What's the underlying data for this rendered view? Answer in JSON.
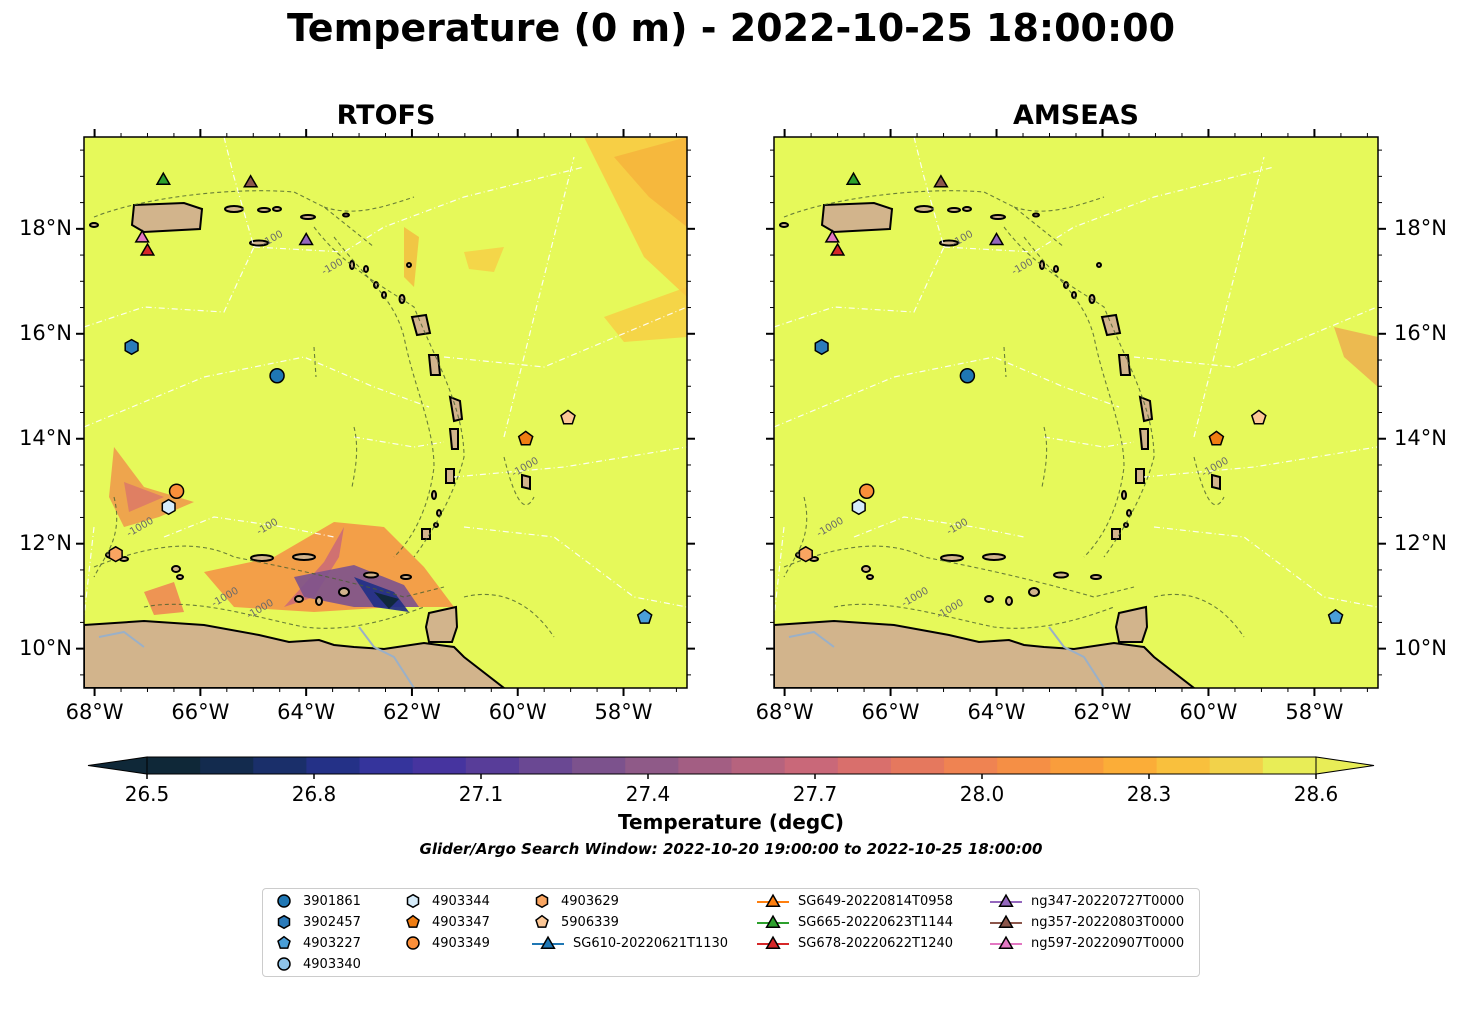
{
  "title": "Temperature (0 m) - 2022-10-25 18:00:00",
  "panels": [
    {
      "title": "RTOFS"
    },
    {
      "title": "AMSEAS"
    }
  ],
  "lon_ticks": [
    "68°W",
    "66°W",
    "64°W",
    "62°W",
    "60°W",
    "58°W"
  ],
  "lat_ticks": [
    "18°N",
    "16°N",
    "14°N",
    "12°N",
    "10°N"
  ],
  "contour_labels": [
    "-100",
    "-1000"
  ],
  "colorbar": {
    "label": "Temperature (degC)",
    "ticks": [
      "26.5",
      "26.8",
      "27.1",
      "27.4",
      "27.7",
      "28.0",
      "28.3",
      "28.6"
    ],
    "colors": [
      "#0f2838",
      "#132b4e",
      "#1a2f6a",
      "#243187",
      "#35349c",
      "#46349f",
      "#583d99",
      "#6a4893",
      "#7c528d",
      "#8f5a88",
      "#a35e83",
      "#b6637e",
      "#c96879",
      "#d96f6c",
      "#e5785e",
      "#ef8352",
      "#f58f45",
      "#f99d3c",
      "#fbad38",
      "#f9c03d",
      "#f2d24a",
      "#e8ed57"
    ]
  },
  "search_window": "Glider/Argo Search Window: 2022-10-20 19:00:00 to 2022-10-25 18:00:00",
  "legend": [
    {
      "label": "3901861",
      "marker": "circle",
      "color": "#1f77b4"
    },
    {
      "label": "3902457",
      "marker": "hexagon",
      "color": "#2b7bba"
    },
    {
      "label": "4903227",
      "marker": "pentagon",
      "color": "#4a9fd8"
    },
    {
      "label": "4903340",
      "marker": "circle",
      "color": "#8ec3e8"
    },
    {
      "label": "4903344",
      "marker": "hexagon",
      "color": "#d6ecfa"
    },
    {
      "label": "4903347",
      "marker": "pentagon",
      "color": "#f07d12"
    },
    {
      "label": "4903349",
      "marker": "circle",
      "color": "#fb8f3a"
    },
    {
      "label": "4903629",
      "marker": "hexagon",
      "color": "#f9a561"
    },
    {
      "label": "5906339",
      "marker": "pentagon",
      "color": "#fcc796"
    },
    {
      "label": "SG610-20220621T1130",
      "marker": "triangle-line",
      "color": "#1f77b4"
    },
    {
      "label": "SG649-20220814T0958",
      "marker": "triangle-line",
      "color": "#ff7f0e"
    },
    {
      "label": "SG665-20220623T1144",
      "marker": "triangle-line",
      "color": "#2ca02c"
    },
    {
      "label": "SG678-20220622T1240",
      "marker": "triangle-line",
      "color": "#d62728"
    },
    {
      "label": "ng347-20220727T0000",
      "marker": "triangle-line",
      "color": "#9467bd"
    },
    {
      "label": "ng357-20220803T0000",
      "marker": "triangle-line",
      "color": "#8c564b"
    },
    {
      "label": "ng597-20220907T0000",
      "marker": "triangle-line",
      "color": "#e377c2"
    }
  ],
  "observations": [
    {
      "id": "3901861",
      "marker": "circle",
      "color": "#1f77b4",
      "lon": -64.55,
      "lat": 15.2
    },
    {
      "id": "3902457",
      "marker": "hexagon",
      "color": "#2b7bba",
      "lon": -67.3,
      "lat": 15.75
    },
    {
      "id": "4903227",
      "marker": "pentagon",
      "color": "#4a9fd8",
      "lon": -57.6,
      "lat": 10.6
    },
    {
      "id": "4903344",
      "marker": "hexagon",
      "color": "#d6ecfa",
      "lon": -66.6,
      "lat": 12.7
    },
    {
      "id": "4903347",
      "marker": "pentagon",
      "color": "#f07d12",
      "lon": -59.85,
      "lat": 14.0
    },
    {
      "id": "4903349",
      "marker": "circle",
      "color": "#fb8f3a",
      "lon": -66.45,
      "lat": 13.0
    },
    {
      "id": "4903629",
      "marker": "hexagon",
      "color": "#f9a561",
      "lon": -67.6,
      "lat": 11.8
    },
    {
      "id": "5906339",
      "marker": "pentagon",
      "color": "#fcc796",
      "lon": -59.05,
      "lat": 14.4
    },
    {
      "id": "SG665-20220623T1144",
      "marker": "triangle",
      "color": "#2ca02c",
      "lon": -66.7,
      "lat": 18.95
    },
    {
      "id": "ng357-20220803T0000",
      "marker": "triangle",
      "color": "#8c564b",
      "lon": -65.05,
      "lat": 18.9
    },
    {
      "id": "ng347-20220727T0000",
      "marker": "triangle",
      "color": "#9467bd",
      "lon": -64.0,
      "lat": 17.8
    },
    {
      "id": "ng597-20220907T0000",
      "marker": "triangle",
      "color": "#e377c2",
      "lon": -67.1,
      "lat": 17.85
    },
    {
      "id": "SG678-20220622T1240",
      "marker": "triangle",
      "color": "#d62728",
      "lon": -67.0,
      "lat": 17.6
    }
  ]
}
